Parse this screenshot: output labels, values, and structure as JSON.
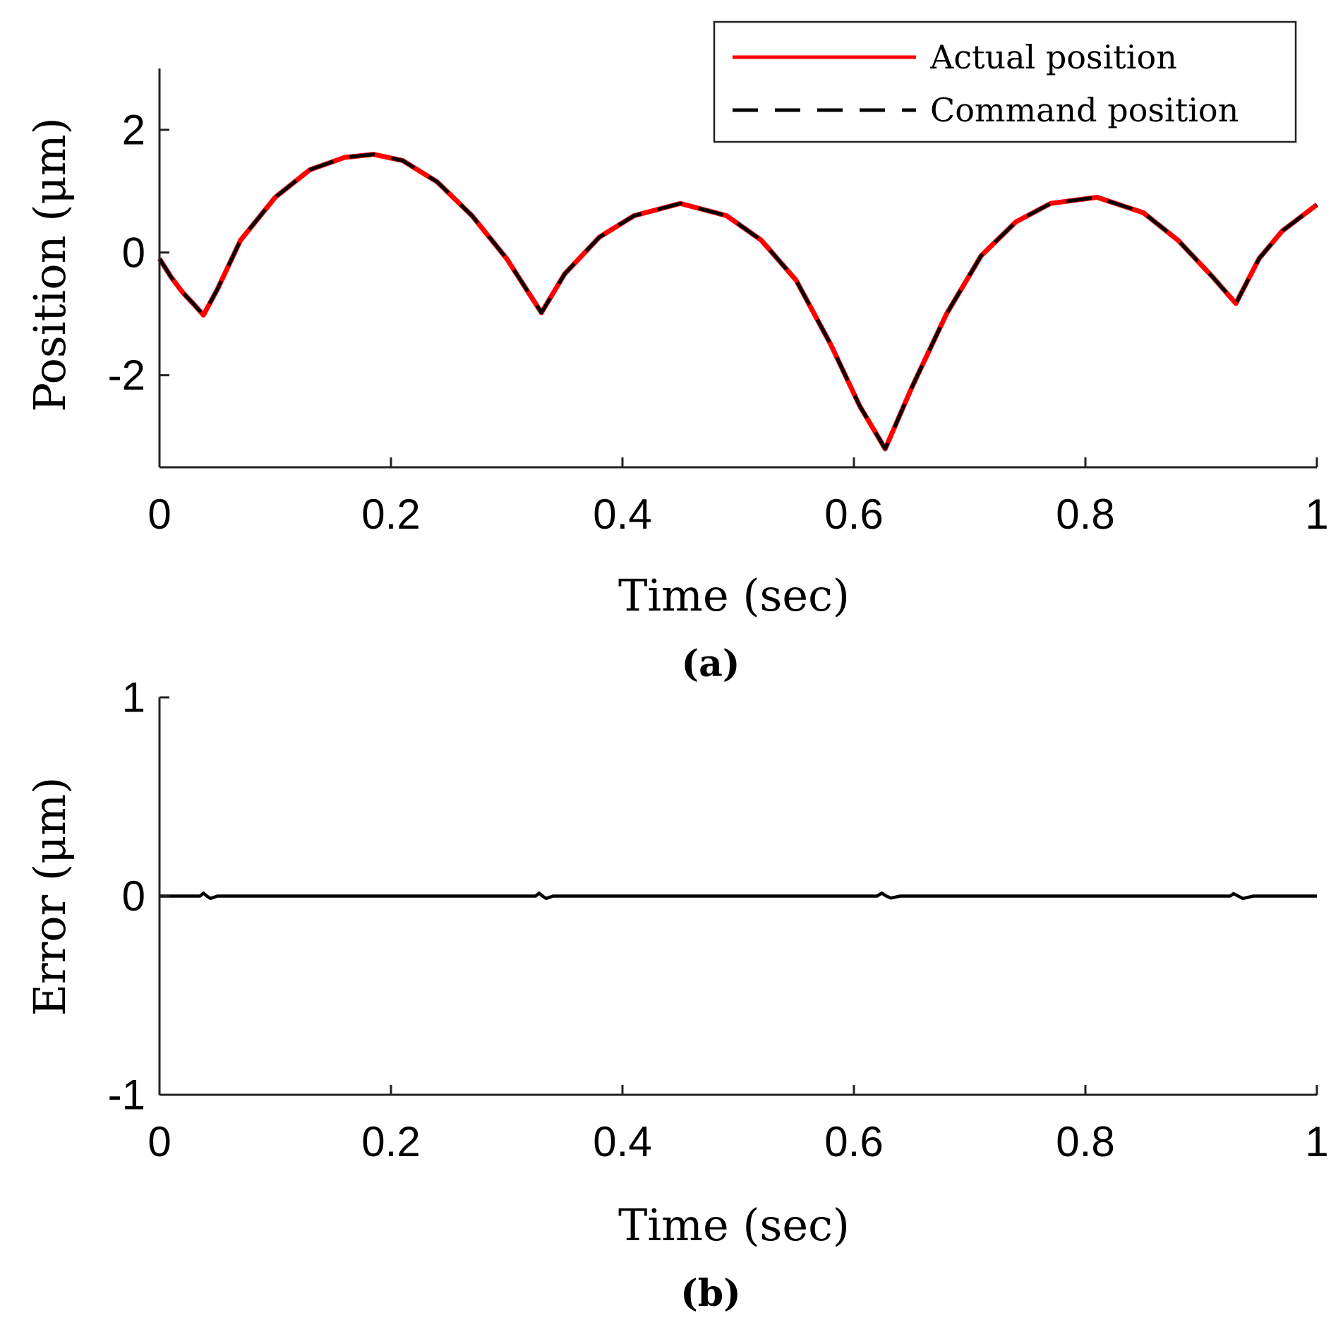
{
  "chart_data": [
    {
      "type": "line",
      "panel_label": "(a)",
      "xlabel": "Time (sec)",
      "ylabel": "Position (μm)",
      "xlim": [
        0,
        1
      ],
      "ylim": [
        -3.5,
        3
      ],
      "xticks": [
        0,
        0.2,
        0.4,
        0.6,
        0.8,
        1
      ],
      "xtick_labels": [
        "0",
        "0.2",
        "0.4",
        "0.6",
        "0.8",
        "1"
      ],
      "yticks": [
        -2,
        0,
        2
      ],
      "ytick_labels": [
        "-2",
        "0",
        "2"
      ],
      "legend_position": "top-right",
      "series": [
        {
          "name": "Actual position",
          "color": "#ff0000",
          "style": "solid",
          "x": [
            0,
            0.01,
            0.02,
            0.03,
            0.038,
            0.05,
            0.07,
            0.1,
            0.13,
            0.16,
            0.185,
            0.21,
            0.24,
            0.27,
            0.3,
            0.33,
            0.35,
            0.38,
            0.41,
            0.45,
            0.49,
            0.52,
            0.55,
            0.58,
            0.605,
            0.627,
            0.65,
            0.68,
            0.71,
            0.74,
            0.77,
            0.81,
            0.85,
            0.88,
            0.91,
            0.93,
            0.95,
            0.97,
            1.0
          ],
          "y": [
            -0.1,
            -0.4,
            -0.65,
            -0.85,
            -1.02,
            -0.6,
            0.2,
            0.9,
            1.35,
            1.55,
            1.6,
            1.5,
            1.15,
            0.6,
            -0.1,
            -0.98,
            -0.35,
            0.25,
            0.6,
            0.8,
            0.6,
            0.2,
            -0.45,
            -1.5,
            -2.5,
            -3.2,
            -2.2,
            -1.0,
            -0.05,
            0.5,
            0.8,
            0.9,
            0.65,
            0.2,
            -0.4,
            -0.83,
            -0.1,
            0.35,
            0.78
          ]
        },
        {
          "name": "Command position",
          "color": "#000000",
          "style": "dashed",
          "x": [
            0,
            0.01,
            0.02,
            0.03,
            0.038,
            0.05,
            0.07,
            0.1,
            0.13,
            0.16,
            0.185,
            0.21,
            0.24,
            0.27,
            0.3,
            0.33,
            0.35,
            0.38,
            0.41,
            0.45,
            0.49,
            0.52,
            0.55,
            0.58,
            0.605,
            0.627,
            0.65,
            0.68,
            0.71,
            0.74,
            0.77,
            0.81,
            0.85,
            0.88,
            0.91,
            0.93,
            0.95,
            0.97,
            1.0
          ],
          "y": [
            -0.1,
            -0.4,
            -0.65,
            -0.85,
            -1.02,
            -0.6,
            0.2,
            0.9,
            1.35,
            1.55,
            1.6,
            1.5,
            1.15,
            0.6,
            -0.1,
            -0.98,
            -0.35,
            0.25,
            0.6,
            0.8,
            0.6,
            0.2,
            -0.45,
            -1.5,
            -2.5,
            -3.2,
            -2.2,
            -1.0,
            -0.05,
            0.5,
            0.8,
            0.9,
            0.65,
            0.2,
            -0.4,
            -0.83,
            -0.1,
            0.35,
            0.78
          ]
        }
      ]
    },
    {
      "type": "line",
      "panel_label": "(b)",
      "xlabel": "Time (sec)",
      "ylabel": "Error (μm)",
      "xlim": [
        0,
        1
      ],
      "ylim": [
        -1,
        1
      ],
      "xticks": [
        0,
        0.2,
        0.4,
        0.6,
        0.8,
        1
      ],
      "xtick_labels": [
        "0",
        "0.2",
        "0.4",
        "0.6",
        "0.8",
        "1"
      ],
      "yticks": [
        -1,
        0,
        1
      ],
      "ytick_labels": [
        "-1",
        "0",
        "1"
      ],
      "series": [
        {
          "name": "Error",
          "color": "#000000",
          "style": "solid",
          "x": [
            0,
            0.035,
            0.038,
            0.041,
            0.044,
            0.05,
            0.325,
            0.328,
            0.331,
            0.334,
            0.34,
            0.62,
            0.624,
            0.628,
            0.632,
            0.64,
            0.925,
            0.928,
            0.932,
            0.936,
            0.945,
            1.0
          ],
          "y": [
            0,
            0,
            0.015,
            0,
            -0.012,
            0,
            0,
            0.015,
            0,
            -0.012,
            0,
            0,
            0.015,
            0,
            -0.01,
            0,
            0,
            0.012,
            0,
            -0.012,
            0,
            0
          ]
        }
      ]
    }
  ]
}
